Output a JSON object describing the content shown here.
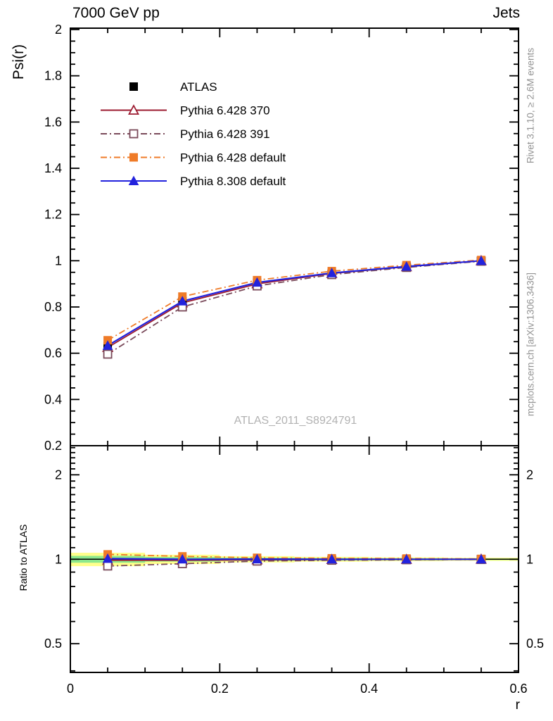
{
  "chart_data": {
    "type": "line",
    "title_left": "7000 GeV pp",
    "title_right": "Jets",
    "xlabel": "r",
    "ylabel_main": "Psi(r)",
    "ylabel_ratio": "Ratio to ATLAS",
    "watermark": "ATLAS_2011_S8924791",
    "note_top_right": "Rivet 3.1.10, ≥ 2.6M events",
    "note_bottom_right": "mcplots.cern.ch [arXiv:1306.3436]",
    "x": [
      0.05,
      0.15,
      0.25,
      0.35,
      0.45,
      0.55
    ],
    "axes": {
      "x": {
        "min": 0,
        "max": 0.6,
        "major": [
          0,
          0.2,
          0.4,
          0.6
        ],
        "minor_step": 0.05
      },
      "y_main": {
        "min": 0.2,
        "max": 2.006,
        "major": [
          0.2,
          0.4,
          0.6,
          0.8,
          1,
          1.2,
          1.4,
          1.6,
          1.8,
          2
        ],
        "minor_step": 0.05,
        "scale": "linear"
      },
      "y_ratio": {
        "min": 0.395,
        "max": 2.54,
        "major": [
          0.5,
          1,
          2
        ],
        "minor": [
          0.4,
          0.6,
          0.7,
          0.8,
          0.9,
          1.1,
          1.2,
          1.3,
          1.4,
          1.5,
          1.6,
          1.7,
          1.8,
          1.9,
          2.1,
          2.2,
          2.3,
          2.4,
          2.5
        ],
        "scale": "log"
      }
    },
    "series": [
      {
        "name": "ATLAS",
        "color": "#000000",
        "marker": "square",
        "fill": "filled",
        "linestyle": "none",
        "psi": [
          0.63,
          0.825,
          0.905,
          0.947,
          0.975,
          1.0
        ],
        "errors": [
          0.018,
          0.012,
          0.009,
          0.007,
          0.005,
          0.004
        ],
        "ratio": null
      },
      {
        "name": "Pythia 6.428 370",
        "color": "#9c1b30",
        "marker": "triangle",
        "fill": "open",
        "linestyle": "solid",
        "psi": [
          0.625,
          0.818,
          0.9,
          0.945,
          0.974,
          1.0
        ],
        "ratio": [
          0.992,
          0.992,
          0.995,
          0.998,
          0.999,
          1.0
        ]
      },
      {
        "name": "Pythia 6.428 391",
        "color": "#7a4a5a",
        "marker": "square",
        "fill": "open",
        "linestyle": "dashdot",
        "psi": [
          0.596,
          0.8,
          0.891,
          0.94,
          0.971,
          0.998
        ],
        "ratio": [
          0.946,
          0.964,
          0.985,
          0.992,
          0.996,
          0.998
        ]
      },
      {
        "name": "Pythia 6.428 default",
        "color": "#ef7b28",
        "marker": "square",
        "fill": "filled",
        "linestyle": "dashdot",
        "psi": [
          0.656,
          0.845,
          0.916,
          0.955,
          0.981,
          1.003
        ],
        "ratio": [
          1.041,
          1.024,
          1.012,
          1.008,
          1.006,
          1.003
        ]
      },
      {
        "name": "Pythia 8.308 default",
        "color": "#2222dd",
        "marker": "triangle",
        "fill": "filled",
        "linestyle": "solid",
        "psi": [
          0.633,
          0.825,
          0.906,
          0.947,
          0.975,
          1.0
        ],
        "ratio": [
          1.005,
          1.0,
          1.001,
          1.0,
          1.0,
          1.0
        ]
      }
    ],
    "ratio_bands": {
      "edges": [
        0,
        0.1,
        0.2,
        0.3,
        0.4,
        0.5,
        0.6
      ],
      "yellow": [
        0.055,
        0.038,
        0.026,
        0.02,
        0.016,
        0.013
      ],
      "green": [
        0.028,
        0.019,
        0.013,
        0.01,
        0.008,
        0.006
      ],
      "yellow_color": "#ffff8c",
      "green_color": "#8ce88c"
    },
    "ratio_unity_line": 1
  }
}
